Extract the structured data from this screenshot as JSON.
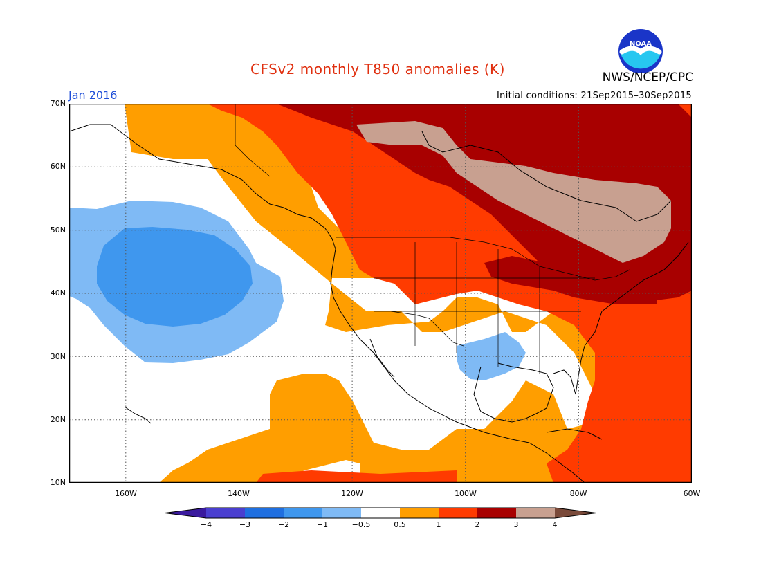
{
  "title": "CFSv2 monthly T850 anomalies (K)",
  "agency": "NWS/NCEP/CPC",
  "valid_month": "Jan 2016",
  "initial_conditions": "Initial conditions: 21Sep2015–30Sep2015",
  "logo": {
    "text": "NOAA",
    "icon": "noaa-seagull-logo"
  },
  "map": {
    "projection": "cylindrical-equidistant",
    "lon_range": [
      -170,
      -60
    ],
    "lat_range": [
      10,
      70
    ],
    "lat_labels": [
      "70N",
      "60N",
      "50N",
      "40N",
      "30N",
      "20N",
      "10N"
    ],
    "lon_labels": [
      "160W",
      "140W",
      "120W",
      "100W",
      "80W",
      "60W"
    ],
    "grid": true,
    "regions": [
      {
        "level": "0.5 to 1",
        "area": "broad warm band: Alaska, central US, Gulf of Mexico, subtropical Pacific 10-25N"
      },
      {
        "level": "1 to 2",
        "area": "northwest Canada, northern US plains, Atlantic and Caribbean"
      },
      {
        "level": "2 to 3",
        "area": "central and eastern Canada, Great Lakes, New England"
      },
      {
        "level": "3 to 4",
        "area": "Hudson Bay region of Canada"
      },
      {
        "level": "-1 to -0.5",
        "area": "northeast Pacific ring around 40N 150W, Texas/Gulf coast"
      },
      {
        "level": "-2 to -1",
        "area": "northeast Pacific core near 40N 152W"
      }
    ]
  },
  "colorbar": {
    "labels": [
      "−4",
      "−3",
      "−2",
      "−1",
      "−0.5",
      "0.5",
      "1",
      "2",
      "3",
      "4"
    ],
    "colors": [
      "#3a1a9e",
      "#4a3fcf",
      "#1f6fe0",
      "#3f97ee",
      "#7fbaf5",
      "#ffffff",
      "#ff9e00",
      "#ff3b00",
      "#a80000",
      "#c8a090",
      "#7a4a3a"
    ]
  }
}
